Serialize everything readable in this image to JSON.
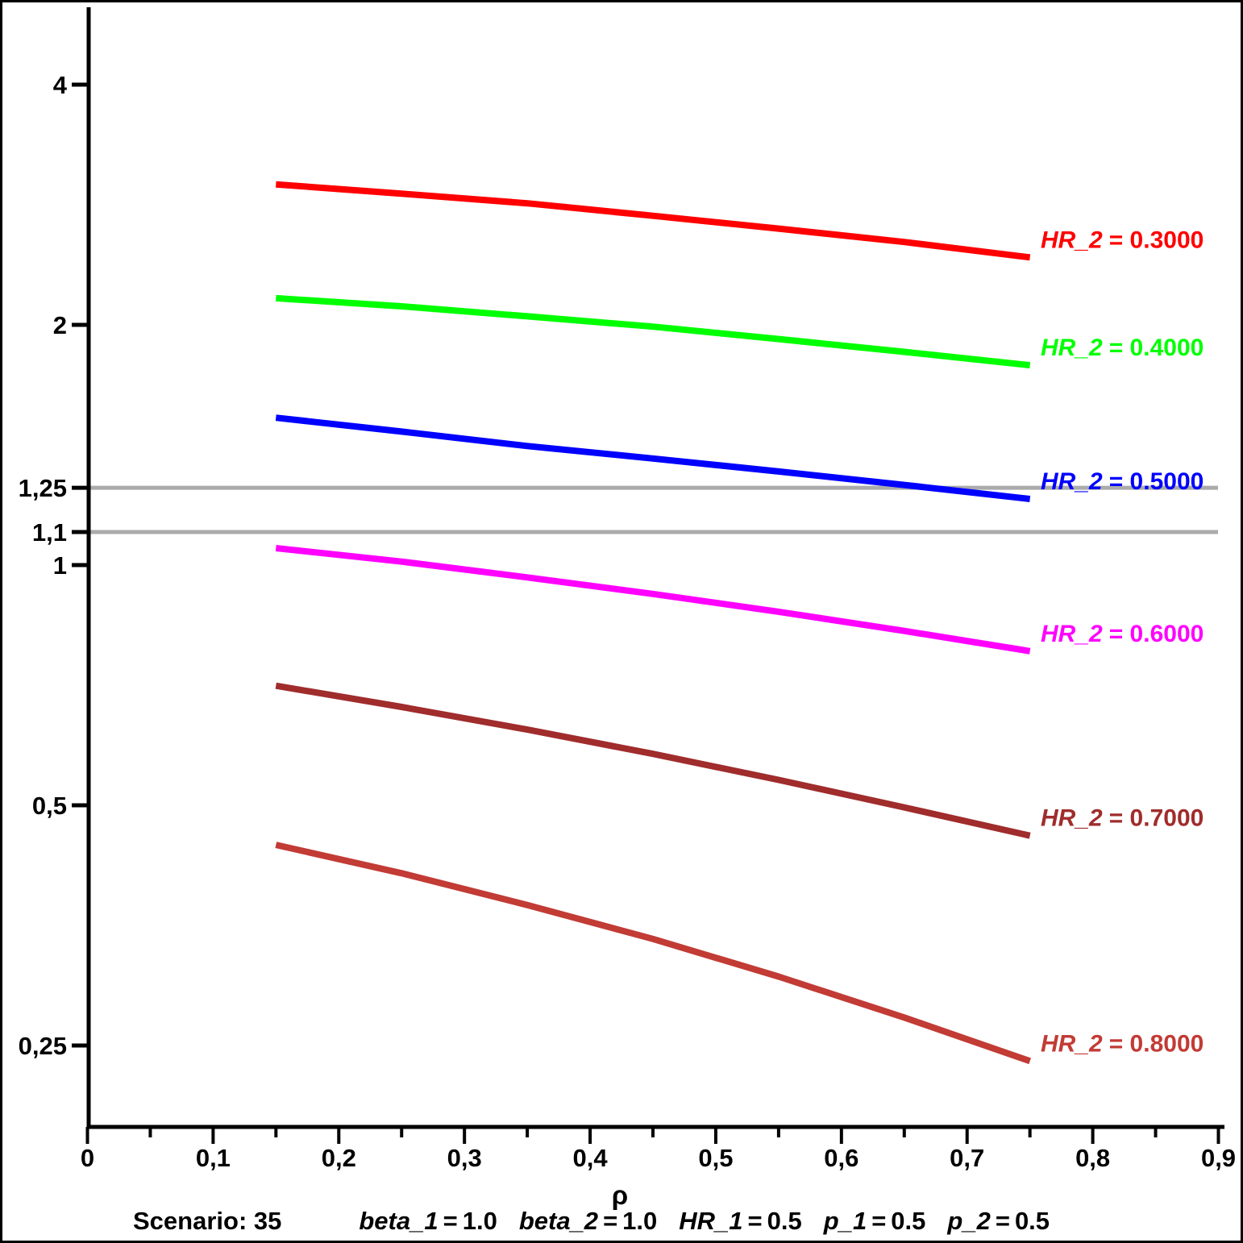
{
  "figure": {
    "background": "#ffffff",
    "border_color": "#000000",
    "axis_color": "#000000",
    "text_color": "#000000"
  },
  "chart_data": {
    "type": "line",
    "title": "",
    "x_axis": {
      "label": "ρ",
      "min": 0,
      "max": 0.9,
      "major_ticks": [
        {
          "value": 0.0,
          "label": "0"
        },
        {
          "value": 0.1,
          "label": "0,1"
        },
        {
          "value": 0.2,
          "label": "0,2"
        },
        {
          "value": 0.3,
          "label": "0,3"
        },
        {
          "value": 0.4,
          "label": "0,4"
        },
        {
          "value": 0.5,
          "label": "0,5"
        },
        {
          "value": 0.6,
          "label": "0,6"
        },
        {
          "value": 0.7,
          "label": "0,7"
        },
        {
          "value": 0.8,
          "label": "0,8"
        },
        {
          "value": 0.9,
          "label": "0,9"
        }
      ],
      "minor_tick_step": 0.05
    },
    "y_axis": {
      "scale": "log",
      "ticks": [
        {
          "value": 4,
          "label": "4"
        },
        {
          "value": 2,
          "label": "2"
        },
        {
          "value": 1.25,
          "label": "1,25"
        },
        {
          "value": 1.1,
          "label": "1,1"
        },
        {
          "value": 1,
          "label": "1"
        },
        {
          "value": 0.5,
          "label": "0,5"
        },
        {
          "value": 0.25,
          "label": "0,25"
        }
      ]
    },
    "reference_lines": [
      {
        "value": 1.25,
        "color": "#ABABAB"
      },
      {
        "value": 1.1,
        "color": "#ABABAB"
      }
    ],
    "x": [
      0.15,
      0.25,
      0.35,
      0.45,
      0.55,
      0.65,
      0.75
    ],
    "series": [
      {
        "name": "HR_2",
        "value_label": "= 0.3000",
        "color": "#FF0000",
        "values": [
          3.0,
          2.92,
          2.84,
          2.74,
          2.64,
          2.54,
          2.43
        ]
      },
      {
        "name": "HR_2",
        "value_label": "= 0.4000",
        "color": "#00FF00",
        "values": [
          2.16,
          2.11,
          2.05,
          1.99,
          1.92,
          1.85,
          1.78
        ]
      },
      {
        "name": "HR_2",
        "value_label": "= 0.5000",
        "color": "#0000FF",
        "values": [
          1.53,
          1.47,
          1.41,
          1.36,
          1.31,
          1.26,
          1.21
        ]
      },
      {
        "name": "HR_2",
        "value_label": "= 0.6000",
        "color": "#FF00FF",
        "values": [
          1.05,
          1.01,
          0.965,
          0.92,
          0.874,
          0.827,
          0.78
        ]
      },
      {
        "name": "HR_2",
        "value_label": "= 0.7000",
        "color": "#A02C2C",
        "values": [
          0.706,
          0.664,
          0.622,
          0.58,
          0.538,
          0.497,
          0.458
        ]
      },
      {
        "name": "HR_2",
        "value_label": "= 0.8000",
        "color": "#C23B35",
        "values": [
          0.446,
          0.411,
          0.375,
          0.34,
          0.305,
          0.271,
          0.239
        ]
      }
    ],
    "annotation": {
      "scenario_label": "Scenario: 35",
      "parameters": [
        {
          "name": "beta_1",
          "value": "1.0"
        },
        {
          "name": "beta_2",
          "value": "1.0"
        },
        {
          "name": "HR_1",
          "value": "0.5"
        },
        {
          "name": "p_1",
          "value": "0.5"
        },
        {
          "name": "p_2",
          "value": "0.5"
        }
      ]
    }
  }
}
